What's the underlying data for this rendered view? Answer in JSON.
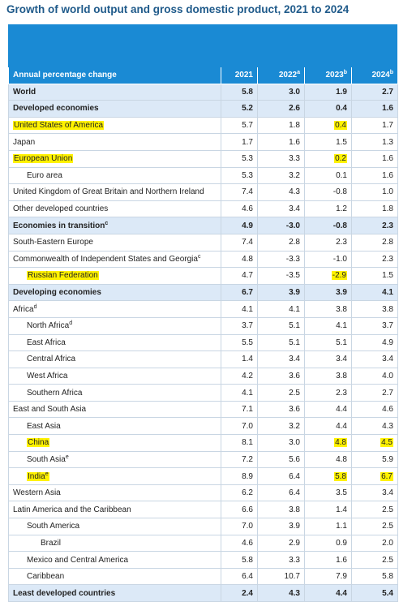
{
  "title": "Growth of world output and gross domestic product, 2021 to 2024",
  "table": {
    "header": [
      {
        "text": "Annual percentage change"
      },
      {
        "text": "2021"
      },
      {
        "text": "2022",
        "note": "a"
      },
      {
        "text": "2023",
        "note": "b"
      },
      {
        "text": "2024",
        "note": "b"
      }
    ],
    "rows": [
      {
        "label": "World",
        "values": [
          "5.8",
          "3.0",
          "1.9",
          "2.7"
        ],
        "bold": true,
        "indent": 0
      },
      {
        "label": "Developed economies",
        "values": [
          "5.2",
          "2.6",
          "0.4",
          "1.6"
        ],
        "bold": true,
        "indent": 0
      },
      {
        "label": "United States of America",
        "values": [
          "5.7",
          "1.8",
          "0.4",
          "1.7"
        ],
        "indent": 0,
        "highlight": [
          0,
          3
        ]
      },
      {
        "label": "Japan",
        "values": [
          "1.7",
          "1.6",
          "1.5",
          "1.3"
        ],
        "indent": 0
      },
      {
        "label": "European Union",
        "values": [
          "5.3",
          "3.3",
          "0.2",
          "1.6"
        ],
        "indent": 0,
        "highlight": [
          0,
          3
        ]
      },
      {
        "label": "Euro area",
        "values": [
          "5.3",
          "3.2",
          "0.1",
          "1.6"
        ],
        "indent": 1
      },
      {
        "label": "United Kingdom of Great Britain and Northern Ireland",
        "values": [
          "7.4",
          "4.3",
          "-0.8",
          "1.0"
        ],
        "indent": 0
      },
      {
        "label": "Other developed countries",
        "values": [
          "4.6",
          "3.4",
          "1.2",
          "1.8"
        ],
        "indent": 0
      },
      {
        "label": "Economies in transition",
        "note": "c",
        "values": [
          "4.9",
          "-3.0",
          "-0.8",
          "2.3"
        ],
        "bold": true,
        "indent": 0
      },
      {
        "label": "South-Eastern Europe",
        "values": [
          "7.4",
          "2.8",
          "2.3",
          "2.8"
        ],
        "indent": 0
      },
      {
        "label": "Commonwealth of Independent States and Georgia",
        "note": "c",
        "values": [
          "4.8",
          "-3.3",
          "-1.0",
          "2.3"
        ],
        "indent": 0
      },
      {
        "label": "Russian Federation",
        "values": [
          "4.7",
          "-3.5",
          "-2.9",
          "1.5"
        ],
        "indent": 1,
        "highlight": [
          0,
          3
        ]
      },
      {
        "label": "Developing economies",
        "values": [
          "6.7",
          "3.9",
          "3.9",
          "4.1"
        ],
        "bold": true,
        "indent": 0
      },
      {
        "label": "Africa",
        "note": "d",
        "values": [
          "4.1",
          "4.1",
          "3.8",
          "3.8"
        ],
        "indent": 0
      },
      {
        "label": "North Africa",
        "note": "d",
        "values": [
          "3.7",
          "5.1",
          "4.1",
          "3.7"
        ],
        "indent": 1
      },
      {
        "label": "East Africa",
        "values": [
          "5.5",
          "5.1",
          "5.1",
          "4.9"
        ],
        "indent": 1
      },
      {
        "label": "Central Africa",
        "values": [
          "1.4",
          "3.4",
          "3.4",
          "3.4"
        ],
        "indent": 1
      },
      {
        "label": "West Africa",
        "values": [
          "4.2",
          "3.6",
          "3.8",
          "4.0"
        ],
        "indent": 1
      },
      {
        "label": "Southern Africa",
        "values": [
          "4.1",
          "2.5",
          "2.3",
          "2.7"
        ],
        "indent": 1
      },
      {
        "label": "East and South Asia",
        "values": [
          "7.1",
          "3.6",
          "4.4",
          "4.6"
        ],
        "indent": 0
      },
      {
        "label": "East Asia",
        "values": [
          "7.0",
          "3.2",
          "4.4",
          "4.3"
        ],
        "indent": 1
      },
      {
        "label": "China",
        "values": [
          "8.1",
          "3.0",
          "4.8",
          "4.5"
        ],
        "indent": 1,
        "highlight": [
          0,
          3,
          4
        ]
      },
      {
        "label": "South Asia",
        "note": "e",
        "values": [
          "7.2",
          "5.6",
          "4.8",
          "5.9"
        ],
        "indent": 1
      },
      {
        "label": "India",
        "note": "e",
        "values": [
          "8.9",
          "6.4",
          "5.8",
          "6.7"
        ],
        "indent": 1,
        "highlight": [
          0,
          3,
          4
        ]
      },
      {
        "label": "Western Asia",
        "values": [
          "6.2",
          "6.4",
          "3.5",
          "3.4"
        ],
        "indent": 0
      },
      {
        "label": "Latin America and the Caribbean",
        "values": [
          "6.6",
          "3.8",
          "1.4",
          "2.5"
        ],
        "indent": 0
      },
      {
        "label": "South America",
        "values": [
          "7.0",
          "3.9",
          "1.1",
          "2.5"
        ],
        "indent": 1
      },
      {
        "label": "Brazil",
        "values": [
          "4.6",
          "2.9",
          "0.9",
          "2.0"
        ],
        "indent": 2
      },
      {
        "label": "Mexico and Central America",
        "values": [
          "5.8",
          "3.3",
          "1.6",
          "2.5"
        ],
        "indent": 1
      },
      {
        "label": "Caribbean",
        "values": [
          "6.4",
          "10.7",
          "7.9",
          "5.8"
        ],
        "indent": 1
      },
      {
        "label": "Least developed countries",
        "values": [
          "2.4",
          "4.3",
          "4.4",
          "5.4"
        ],
        "bold": true,
        "indent": 0
      }
    ]
  }
}
